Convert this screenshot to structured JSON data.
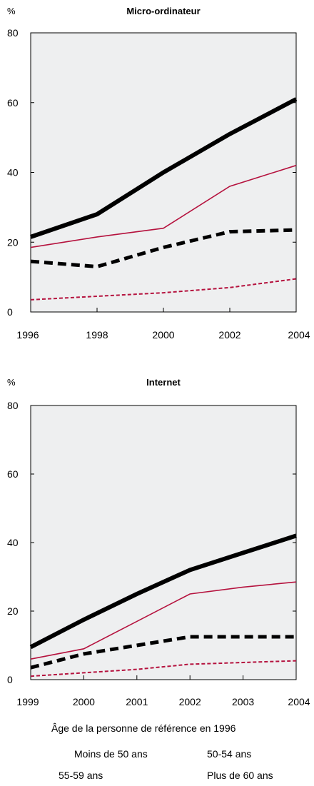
{
  "chart_data": [
    {
      "type": "line",
      "title": "Micro-ordinateur",
      "ylabel": "%",
      "x": [
        "1996",
        "1998",
        "2000",
        "2002",
        "2004"
      ],
      "ylim": [
        0,
        80
      ],
      "yticks": [
        "0",
        "20",
        "40",
        "60",
        "80"
      ],
      "series": [
        {
          "name": "Moins de 50 ans",
          "values": [
            21.5,
            28,
            40,
            51,
            61
          ]
        },
        {
          "name": "50-54 ans",
          "values": [
            18.5,
            21.5,
            24,
            36,
            42
          ]
        },
        {
          "name": "55-59 ans",
          "values": [
            14.5,
            13,
            18.5,
            23,
            23.5
          ]
        },
        {
          "name": "Plus de 60 ans",
          "values": [
            3.5,
            4.5,
            5.5,
            7,
            9.5
          ]
        }
      ]
    },
    {
      "type": "line",
      "title": "Internet",
      "ylabel": "%",
      "x": [
        "1999",
        "2000",
        "2001",
        "2002",
        "2003",
        "2004"
      ],
      "ylim": [
        0,
        80
      ],
      "yticks": [
        "0",
        "20",
        "40",
        "60",
        "80"
      ],
      "series": [
        {
          "name": "Moins de 50 ans",
          "values": [
            9.5,
            17.5,
            25,
            32,
            37,
            42
          ]
        },
        {
          "name": "50-54 ans",
          "values": [
            6,
            9,
            17,
            25,
            27,
            28.5
          ]
        },
        {
          "name": "55-59 ans",
          "values": [
            3.5,
            7.5,
            10,
            12.5,
            12.5,
            12.5
          ]
        },
        {
          "name": "Plus de 60 ans",
          "values": [
            1,
            2,
            3,
            4.5,
            5,
            5.5
          ]
        }
      ]
    }
  ],
  "legend": {
    "title": "Âge de la personne de référence en 1996",
    "items": [
      {
        "label": "Moins de 50 ans",
        "color": "#000000",
        "style": "solid-thick"
      },
      {
        "label": "50-54 ans",
        "color": "#b5123e",
        "style": "solid-thin"
      },
      {
        "label": "55-59 ans",
        "color": "#000000",
        "style": "dashed-thick"
      },
      {
        "label": "Plus de 60 ans",
        "color": "#b5123e",
        "style": "dashed-thin"
      }
    ]
  },
  "colors": {
    "plot_background": "#eeeff0",
    "dark_series": "#000000",
    "red_series": "#b5123e"
  }
}
